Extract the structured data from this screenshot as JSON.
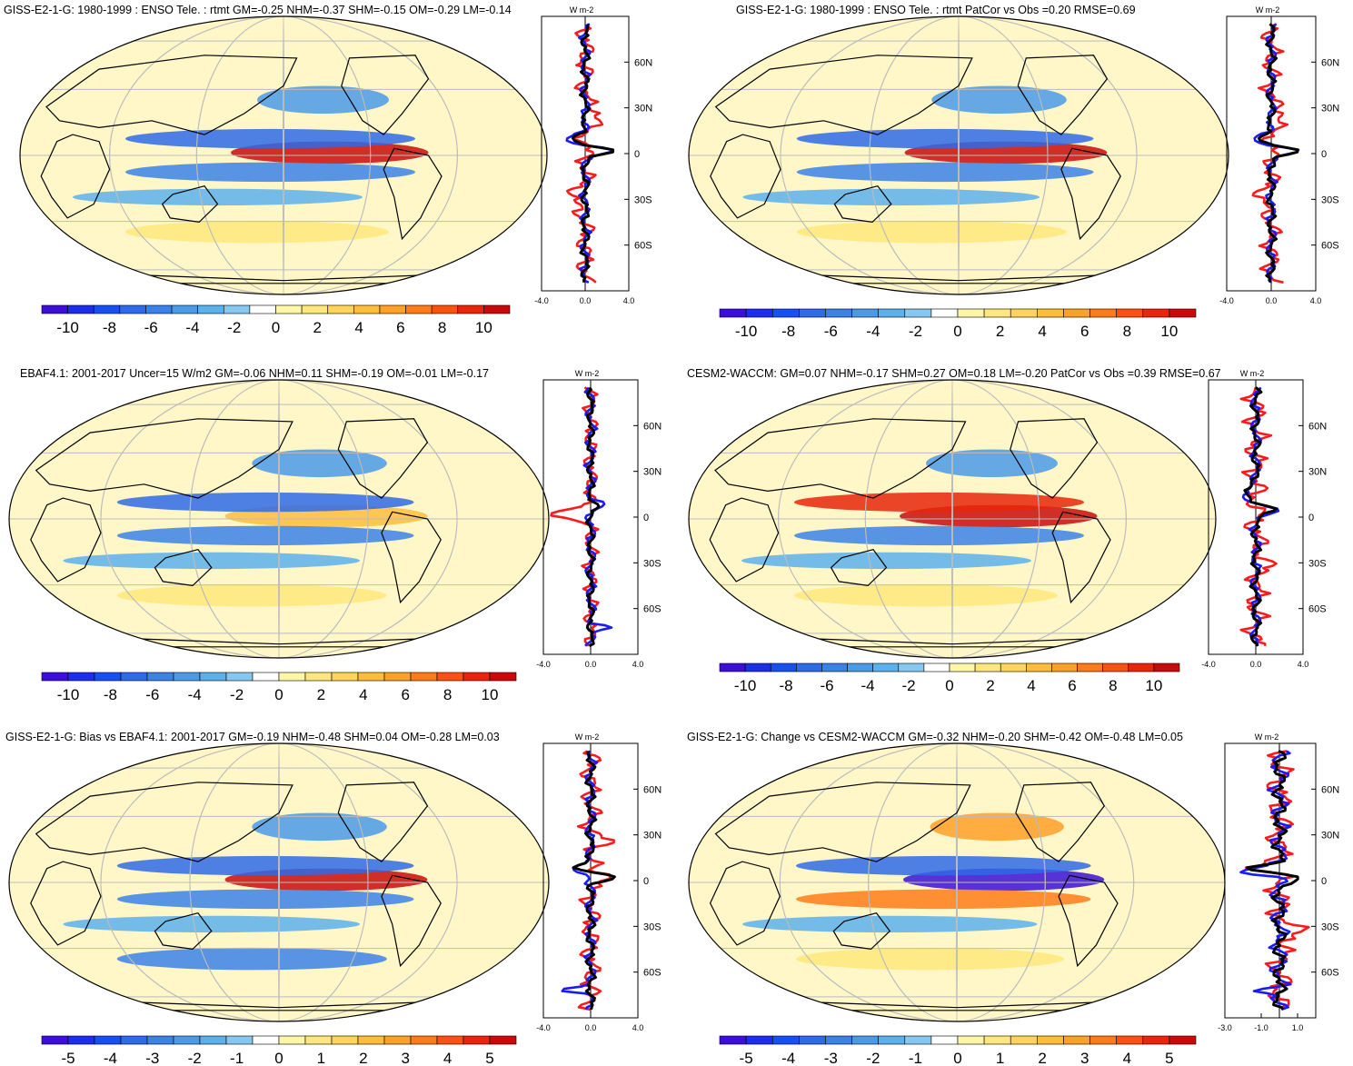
{
  "colors": {
    "blue_to_red_scale": [
      "#3c0fd8",
      "#1c2ee8",
      "#1850f0",
      "#2f6ae8",
      "#3b82e8",
      "#4a9ae8",
      "#5cb0ec",
      "#86c8f0",
      "#ffffff",
      "#fff7a8",
      "#ffe77c",
      "#ffd45a",
      "#ffbd3c",
      "#ffa028",
      "#ff7c18",
      "#f85410",
      "#e8260c",
      "#c80a0a"
    ],
    "land_outline": "#000000",
    "grid": "#bbbbbb",
    "zonal_model": "#ff1a1a",
    "zonal_obs": "#1a1aff",
    "zonal_black": "#000000"
  },
  "chart_data": [
    {
      "type": "heatmap",
      "title": "GISS-E2-1-G: 1980-1999 : ENSO Tele. : rtmt GM=-0.25 NHM=-0.37 SHM=-0.15 OM=-0.29 LM=-0.14",
      "colorbar_ticks": [
        "-10",
        "-8",
        "-6",
        "-4",
        "-2",
        "0",
        "2",
        "4",
        "6",
        "8",
        "10"
      ],
      "zonal": {
        "unit": "W m-2",
        "lat_ticks": [
          "60N",
          "30N",
          "0",
          "30S",
          "60S"
        ],
        "x_ticks": [
          "-4.0",
          "0.0",
          "4.0"
        ],
        "xlim": [
          -4,
          4
        ]
      }
    },
    {
      "type": "heatmap",
      "title": "GISS-E2-1-G: 1980-1999 : ENSO Tele. : rtmt PatCor vs Obs =0.20 RMSE=0.69",
      "colorbar_ticks": [
        "-10",
        "-8",
        "-6",
        "-4",
        "-2",
        "0",
        "2",
        "4",
        "6",
        "8",
        "10"
      ],
      "zonal": {
        "unit": "W m-2",
        "lat_ticks": [
          "60N",
          "30N",
          "0",
          "30S",
          "60S"
        ],
        "x_ticks": [
          "-4.0",
          "0.0",
          "4.0"
        ],
        "xlim": [
          -4,
          4
        ]
      }
    },
    {
      "type": "heatmap",
      "title": "EBAF4.1: 2001-2017 Uncer=15 W/m2 GM=-0.06 NHM=0.11 SHM=-0.19 OM=-0.01 LM=-0.17",
      "colorbar_ticks": [
        "-10",
        "-8",
        "-6",
        "-4",
        "-2",
        "0",
        "2",
        "4",
        "6",
        "8",
        "10"
      ],
      "zonal": {
        "unit": "W m-2",
        "lat_ticks": [
          "60N",
          "30N",
          "0",
          "30S",
          "60S"
        ],
        "x_ticks": [
          "-4.0",
          "0.0",
          "4.0"
        ],
        "xlim": [
          -4,
          4
        ]
      }
    },
    {
      "type": "heatmap",
      "title": "CESM2-WACCM: GM=0.07 NHM=-0.17 SHM=0.27 OM=0.18 LM=-0.20 PatCor vs Obs =0.39 RMSE=0.67",
      "colorbar_ticks": [
        "-10",
        "-8",
        "-6",
        "-4",
        "-2",
        "0",
        "2",
        "4",
        "6",
        "8",
        "10"
      ],
      "zonal": {
        "unit": "W m-2",
        "lat_ticks": [
          "60N",
          "30N",
          "0",
          "30S",
          "60S"
        ],
        "x_ticks": [
          "-4.0",
          "0.0",
          "4.0"
        ],
        "xlim": [
          -4,
          4
        ]
      }
    },
    {
      "type": "heatmap",
      "title": "GISS-E2-1-G: Bias vs EBAF4.1: 2001-2017 GM=-0.19 NHM=-0.48 SHM=0.04 OM=-0.28 LM=0.03",
      "colorbar_ticks": [
        "-5",
        "-4",
        "-3",
        "-2",
        "-1",
        "0",
        "1",
        "2",
        "3",
        "4",
        "5"
      ],
      "zonal": {
        "unit": "W m-2",
        "lat_ticks": [
          "60N",
          "30N",
          "0",
          "30S",
          "60S"
        ],
        "x_ticks": [
          "-4.0",
          "0.0",
          "4.0"
        ],
        "xlim": [
          -4,
          4
        ]
      }
    },
    {
      "type": "heatmap",
      "title": "GISS-E2-1-G: Change vs CESM2-WACCM GM=-0.32 NHM=-0.20 SHM=-0.42 OM=-0.48 LM=0.05",
      "colorbar_ticks": [
        "-5",
        "-4",
        "-3",
        "-2",
        "-1",
        "0",
        "1",
        "2",
        "3",
        "4",
        "5"
      ],
      "zonal": {
        "unit": "W m-2",
        "lat_ticks": [
          "60N",
          "30N",
          "0",
          "30S",
          "60S"
        ],
        "x_ticks": [
          "-3.0",
          "-1.0",
          "1.0"
        ],
        "xlim": [
          -3,
          2
        ]
      }
    }
  ]
}
